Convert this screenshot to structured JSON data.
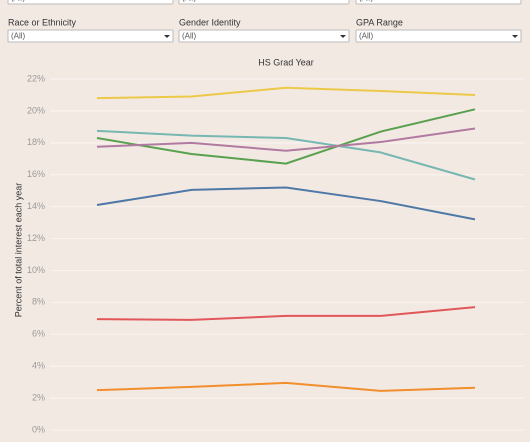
{
  "filters_top": [
    {
      "value": "(All)"
    },
    {
      "value": "(All)"
    },
    {
      "value": "(All)"
    }
  ],
  "filters": [
    {
      "label": "Race or Ethnicity",
      "value": "(All)"
    },
    {
      "label": "Gender Identity",
      "value": "(All)"
    },
    {
      "label": "GPA Range",
      "value": "(All)"
    }
  ],
  "chart_data": {
    "type": "line",
    "title": "HS Grad Year",
    "y_label": "Percent of total interest each year",
    "categories": [
      null,
      null,
      null,
      null,
      null
    ],
    "ylim": [
      0,
      22
    ],
    "yticks": [
      {
        "value": 0,
        "label": "0%"
      },
      {
        "value": 2,
        "label": "2%"
      },
      {
        "value": 4,
        "label": "4%"
      },
      {
        "value": 6,
        "label": "6%"
      },
      {
        "value": 8,
        "label": "8%"
      },
      {
        "value": 10,
        "label": "10%"
      },
      {
        "value": 12,
        "label": "12%"
      },
      {
        "value": 14,
        "label": "14%"
      },
      {
        "value": 16,
        "label": "16%"
      },
      {
        "value": 18,
        "label": "18%"
      },
      {
        "value": 20,
        "label": "20%"
      },
      {
        "value": 22,
        "label": "22%"
      }
    ],
    "grid": true,
    "series": [
      {
        "color": "#edc948",
        "values": [
          20.8,
          20.9,
          21.45,
          21.25,
          21.0
        ]
      },
      {
        "color": "#59a14f",
        "values": [
          18.3,
          17.3,
          16.7,
          18.7,
          20.1
        ]
      },
      {
        "color": "#76b7b2",
        "values": [
          18.75,
          18.45,
          18.3,
          17.4,
          15.7
        ]
      },
      {
        "color": "#b07aa1",
        "values": [
          17.75,
          18.0,
          17.5,
          18.05,
          18.9
        ]
      },
      {
        "color": "#4e79a7",
        "values": [
          14.1,
          15.05,
          15.2,
          14.35,
          13.2
        ]
      },
      {
        "color": "#e15759",
        "values": [
          6.95,
          6.9,
          7.15,
          7.15,
          7.7
        ]
      },
      {
        "color": "#f28e2b",
        "values": [
          2.5,
          2.7,
          2.95,
          2.45,
          2.65
        ]
      }
    ]
  }
}
